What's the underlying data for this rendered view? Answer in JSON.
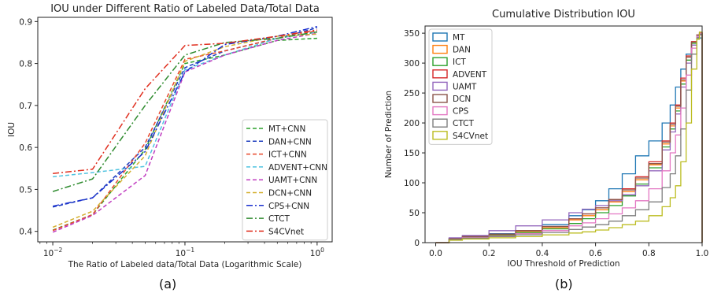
{
  "chart_data": [
    {
      "type": "line",
      "title": "IOU under Different Ratio of Labeled Data/Total Data",
      "xlabel": "The Ratio of Labeled data/Total Data (Logarithmic Scale)",
      "ylabel": "IOU",
      "xscale": "log",
      "xlim": [
        0.0077,
        1.3
      ],
      "ylim": [
        0.375,
        0.91
      ],
      "x": [
        0.01,
        0.02,
        0.05,
        0.1,
        0.2,
        0.5,
        1.0
      ],
      "xticks": [
        {
          "base": "10",
          "exp": "−2",
          "value": 0.01
        },
        {
          "base": "10",
          "exp": "−1",
          "value": 0.1
        },
        {
          "base": "10",
          "exp": "0",
          "value": 1.0
        }
      ],
      "yticks": [
        "0.4",
        "0.5",
        "0.6",
        "0.7",
        "0.8",
        "0.9"
      ],
      "legend_position": "lower-right",
      "grid": false,
      "series": [
        {
          "name": "MT+CNN",
          "color": "#2ca02c",
          "dash": "5,3",
          "values": [
            0.403,
            0.44,
            0.595,
            0.8,
            0.82,
            0.855,
            0.86
          ]
        },
        {
          "name": "DAN+CNN",
          "color": "#1f3fbf",
          "dash": "5,3",
          "values": [
            0.458,
            0.48,
            0.6,
            0.79,
            0.83,
            0.86,
            0.885
          ]
        },
        {
          "name": "ICT+CNN",
          "color": "#e8462a",
          "dash": "5,3",
          "values": [
            0.402,
            0.44,
            0.61,
            0.81,
            0.83,
            0.86,
            0.878
          ]
        },
        {
          "name": "ADVENT+CNN",
          "color": "#4fc3e0",
          "dash": "5,3",
          "values": [
            0.53,
            0.54,
            0.555,
            0.785,
            0.82,
            0.86,
            0.875
          ]
        },
        {
          "name": "UAMT+CNN",
          "color": "#c03cc0",
          "dash": "5,3",
          "values": [
            0.398,
            0.438,
            0.533,
            0.78,
            0.82,
            0.855,
            0.872
          ]
        },
        {
          "name": "DCN+CNN",
          "color": "#d4b030",
          "dash": "5,3",
          "values": [
            0.41,
            0.448,
            0.58,
            0.805,
            0.84,
            0.865,
            0.87
          ]
        },
        {
          "name": "CPS+CNN",
          "color": "#1a2fcf",
          "dash": "8,3,2,3",
          "values": [
            0.46,
            0.48,
            0.59,
            0.78,
            0.845,
            0.865,
            0.888
          ]
        },
        {
          "name": "CTCT",
          "color": "#2e8b2e",
          "dash": "8,3,2,3",
          "values": [
            0.495,
            0.525,
            0.7,
            0.82,
            0.85,
            0.86,
            0.875
          ]
        },
        {
          "name": "S4CVnet",
          "color": "#e03020",
          "dash": "8,3,2,3",
          "values": [
            0.538,
            0.548,
            0.74,
            0.843,
            0.848,
            0.865,
            0.88
          ]
        }
      ]
    },
    {
      "type": "line",
      "title": "Cumulative Distribution IOU",
      "xlabel": "IOU Threshold of Prediction",
      "ylabel": "Number of Prediction",
      "xlim": [
        -0.04,
        1.0
      ],
      "ylim": [
        0,
        362
      ],
      "xticks": [
        "0.0",
        "0.2",
        "0.4",
        "0.6",
        "0.8",
        "1.0"
      ],
      "yticks": [
        "0",
        "50",
        "100",
        "150",
        "200",
        "250",
        "300",
        "350"
      ],
      "legend_position": "upper-left",
      "grid": false,
      "x": [
        0.0,
        0.05,
        0.1,
        0.2,
        0.3,
        0.4,
        0.5,
        0.55,
        0.6,
        0.65,
        0.7,
        0.75,
        0.8,
        0.85,
        0.88,
        0.9,
        0.92,
        0.94,
        0.96,
        0.98,
        0.99
      ],
      "series": [
        {
          "name": "MT",
          "color": "#1f77b4",
          "values": [
            0,
            7,
            11,
            15,
            20,
            30,
            45,
            55,
            70,
            90,
            115,
            145,
            170,
            200,
            230,
            260,
            290,
            315,
            330,
            340,
            342
          ]
        },
        {
          "name": "DAN",
          "color": "#ff7f0e",
          "values": [
            0,
            6,
            9,
            13,
            18,
            25,
            38,
            45,
            55,
            68,
            85,
            105,
            130,
            165,
            195,
            225,
            270,
            310,
            335,
            346,
            350
          ]
        },
        {
          "name": "ICT",
          "color": "#2ca02c",
          "values": [
            0,
            6,
            9,
            12,
            17,
            23,
            32,
            40,
            50,
            62,
            78,
            98,
            125,
            160,
            190,
            220,
            265,
            305,
            333,
            346,
            350
          ]
        },
        {
          "name": "ADVENT",
          "color": "#d62728",
          "values": [
            0,
            6,
            10,
            14,
            20,
            27,
            40,
            48,
            58,
            72,
            90,
            110,
            135,
            170,
            200,
            230,
            275,
            312,
            336,
            347,
            351
          ]
        },
        {
          "name": "UAMT",
          "color": "#9467bd",
          "values": [
            0,
            8,
            12,
            20,
            28,
            38,
            50,
            56,
            62,
            70,
            80,
            95,
            120,
            155,
            185,
            215,
            260,
            300,
            330,
            343,
            347
          ]
        },
        {
          "name": "DCN",
          "color": "#8c564b",
          "values": [
            0,
            6,
            10,
            14,
            20,
            27,
            40,
            48,
            58,
            72,
            88,
            108,
            132,
            168,
            198,
            228,
            272,
            310,
            335,
            347,
            350
          ]
        },
        {
          "name": "CPS",
          "color": "#e377c2",
          "values": [
            0,
            5,
            8,
            11,
            15,
            20,
            28,
            33,
            40,
            48,
            58,
            70,
            90,
            120,
            150,
            180,
            225,
            280,
            325,
            345,
            350
          ]
        },
        {
          "name": "CTCT",
          "color": "#7f7f7f",
          "values": [
            0,
            5,
            7,
            10,
            13,
            17,
            22,
            26,
            30,
            36,
            45,
            55,
            68,
            92,
            115,
            145,
            190,
            255,
            315,
            342,
            348
          ]
        },
        {
          "name": "S4CVnet",
          "color": "#bcbd22",
          "values": [
            0,
            4,
            6,
            8,
            10,
            13,
            16,
            18,
            21,
            25,
            30,
            36,
            45,
            60,
            75,
            95,
            135,
            200,
            290,
            340,
            352
          ]
        }
      ]
    }
  ],
  "captions": [
    "(a)",
    "(b)"
  ]
}
